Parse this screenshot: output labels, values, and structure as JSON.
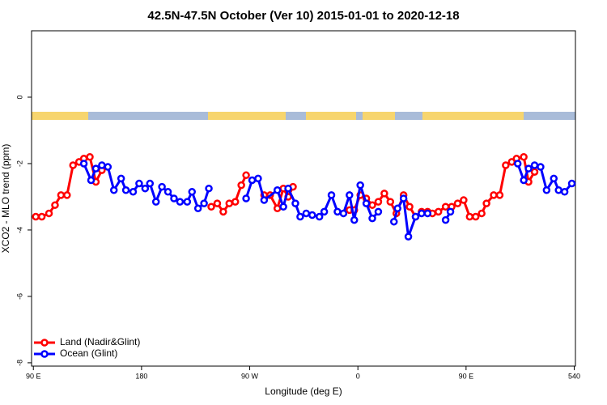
{
  "chart_data": {
    "type": "line",
    "title": "42.5N-47.5N October (Ver 10)   2015-01-01 to 2020-12-18",
    "xlabel": "Longitude (deg E)",
    "ylabel": "XCO2 - MLO trend (ppm)",
    "xlim": [
      88.5,
      541
    ],
    "ylim": [
      -8.1,
      2
    ],
    "xticks": [
      {
        "value": 90,
        "label": "90 E"
      },
      180,
      {
        "value": 270,
        "label": "90 W"
      },
      {
        "value": 360,
        "label": "0"
      },
      {
        "value": 450,
        "label": "90 E"
      },
      540
    ],
    "yticks": [
      0,
      -2,
      -4,
      -6,
      -8
    ],
    "legend": "bottom-left",
    "series": [
      {
        "name": "Land (Nadir&Glint)",
        "color": "#ff0000",
        "x": [
          92,
          97,
          103,
          108,
          113,
          118,
          123,
          128,
          132,
          137,
          142,
          147,
          190,
          238,
          243,
          248,
          253,
          258,
          263,
          267,
          275,
          282,
          287,
          293,
          298,
          302,
          306,
          332,
          353,
          357,
          362,
          367,
          372,
          377,
          382,
          387,
          392,
          398,
          403,
          408,
          413,
          418,
          422,
          427,
          433,
          438,
          443,
          448,
          453,
          458,
          463,
          467,
          473,
          478,
          483,
          488,
          492,
          498,
          502,
          507
        ],
        "values": [
          -3.6,
          -3.6,
          -3.5,
          -3.25,
          -2.95,
          -2.95,
          -2.05,
          -1.95,
          -1.85,
          -1.8,
          -2.55,
          -2.2,
          null,
          -3.3,
          -3.2,
          -3.45,
          -3.2,
          -3.15,
          -2.65,
          -2.35,
          null,
          -2.95,
          -2.95,
          -3.35,
          -2.75,
          -3.0,
          -2.7,
          null,
          -3.4,
          -3.4,
          -2.95,
          -3.05,
          -3.25,
          -3.15,
          -2.9,
          -3.15,
          -3.5,
          -2.95,
          -3.3,
          -3.6,
          -3.45,
          -3.45,
          -3.5,
          -3.45,
          -3.3,
          -3.3,
          -3.2,
          -3.1,
          -3.6,
          -3.6,
          -3.5,
          -3.2,
          -2.95,
          -2.95,
          -2.05,
          -1.95,
          -1.85,
          -1.8,
          -2.55,
          -2.25
        ]
      },
      {
        "name": "Ocean (Glint)",
        "color": "#0000ff",
        "x": [
          132,
          138,
          142,
          147,
          152,
          157,
          163,
          167,
          173,
          178,
          183,
          187,
          192,
          197,
          202,
          207,
          212,
          218,
          222,
          227,
          232,
          236,
          252,
          267,
          272,
          277,
          282,
          293,
          298,
          302,
          308,
          312,
          317,
          322,
          328,
          332,
          338,
          343,
          348,
          353,
          357,
          362,
          367,
          372,
          377,
          383,
          390,
          393,
          398,
          402,
          408,
          413,
          418,
          425,
          433,
          437,
          467,
          493,
          498,
          502,
          507,
          512,
          517,
          523,
          527,
          532,
          538
        ],
        "values": [
          -2.0,
          -2.5,
          -2.15,
          -2.05,
          -2.1,
          -2.8,
          -2.45,
          -2.8,
          -2.85,
          -2.6,
          -2.75,
          -2.6,
          -3.15,
          -2.7,
          -2.85,
          -3.05,
          -3.15,
          -3.15,
          -2.85,
          -3.35,
          -3.2,
          -2.75,
          null,
          -3.05,
          -2.5,
          -2.45,
          -3.1,
          -2.8,
          -3.3,
          -2.75,
          -3.2,
          -3.6,
          -3.5,
          -3.55,
          -3.6,
          -3.45,
          -2.95,
          -3.45,
          -3.5,
          -2.95,
          -3.7,
          -2.65,
          -3.2,
          -3.65,
          -3.45,
          null,
          -3.75,
          -3.35,
          -3.05,
          -4.2,
          -3.6,
          -3.5,
          -3.5,
          null,
          -3.7,
          -3.45,
          null,
          -2.0,
          -2.5,
          -2.15,
          -2.05,
          -2.1,
          -2.8,
          -2.45,
          -2.8,
          -2.85,
          -2.6
        ]
      }
    ]
  }
}
